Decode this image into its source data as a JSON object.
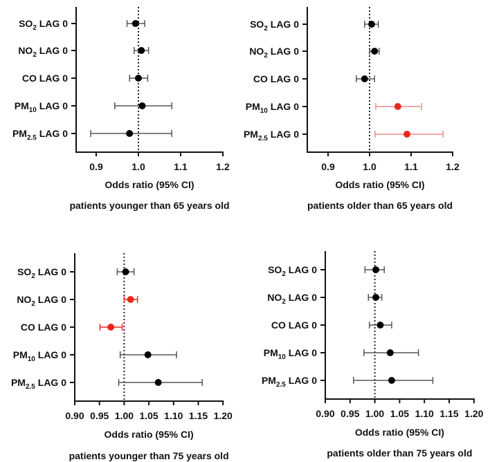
{
  "chart_data": [
    {
      "type": "forest",
      "subtitle": "patients younger than 65 years old",
      "xlabel": "Odds ratio (95% CI)",
      "xlim": [
        0.85,
        1.2
      ],
      "xticks": [
        "0.9",
        "1.0",
        "1.1",
        "1.2"
      ],
      "reference_line": 1.0,
      "rows": [
        {
          "pre": "SO",
          "sub": "2",
          "post": " LAG 0",
          "or": 0.993,
          "lo": 0.973,
          "hi": 1.015,
          "significant": false
        },
        {
          "pre": "NO",
          "sub": "2",
          "post": " LAG 0",
          "or": 1.007,
          "lo": 0.99,
          "hi": 1.024,
          "significant": false
        },
        {
          "pre": "CO LAG 0",
          "sub": "",
          "post": "",
          "or": 1.0,
          "lo": 0.979,
          "hi": 1.022,
          "significant": false
        },
        {
          "pre": "PM",
          "sub": "10",
          "post": " LAG 0",
          "or": 1.009,
          "lo": 0.944,
          "hi": 1.079,
          "significant": false
        },
        {
          "pre": "PM",
          "sub": "2.5",
          "post": " LAG 0",
          "or": 0.979,
          "lo": 0.887,
          "hi": 1.079,
          "significant": false
        }
      ]
    },
    {
      "type": "forest",
      "subtitle": "patients older than 65 years old",
      "xlabel": "Odds ratio (95% CI)",
      "xlim": [
        0.85,
        1.2
      ],
      "xticks": [
        "0.9",
        "1.0",
        "1.1",
        "1.2"
      ],
      "reference_line": 1.0,
      "rows": [
        {
          "pre": "SO",
          "sub": "2",
          "post": " LAG 0",
          "or": 1.005,
          "lo": 0.988,
          "hi": 1.021,
          "significant": false
        },
        {
          "pre": "NO",
          "sub": "2",
          "post": " LAG 0",
          "or": 1.012,
          "lo": 1.0,
          "hi": 1.023,
          "significant": false
        },
        {
          "pre": "CO LAG 0",
          "sub": "",
          "post": "",
          "or": 0.988,
          "lo": 0.968,
          "hi": 1.012,
          "significant": false
        },
        {
          "pre": "PM",
          "sub": "10",
          "post": " LAG 0",
          "or": 1.068,
          "lo": 1.015,
          "hi": 1.125,
          "significant": true
        },
        {
          "pre": "PM",
          "sub": "2.5",
          "post": " LAG 0",
          "or": 1.09,
          "lo": 1.013,
          "hi": 1.177,
          "significant": true
        }
      ]
    },
    {
      "type": "forest",
      "subtitle": "patients younger than 75 years old",
      "xlabel": "Odds ratio (95% CI)",
      "xlim": [
        0.9,
        1.2
      ],
      "xticks": [
        "0.90",
        "0.95",
        "1.00",
        "1.05",
        "1.10",
        "1.15",
        "1.20"
      ],
      "reference_line": 1.0,
      "rows": [
        {
          "pre": "SO",
          "sub": "2",
          "post": " LAG 0",
          "or": 1.003,
          "lo": 0.986,
          "hi": 1.02,
          "significant": false
        },
        {
          "pre": "NO",
          "sub": "2",
          "post": " LAG 0",
          "or": 1.013,
          "lo": 1.0,
          "hi": 1.027,
          "significant": true
        },
        {
          "pre": "CO LAG 0",
          "sub": "",
          "post": "",
          "or": 0.973,
          "lo": 0.951,
          "hi": 0.996,
          "significant": true
        },
        {
          "pre": "PM",
          "sub": "10",
          "post": " LAG 0",
          "or": 1.048,
          "lo": 0.992,
          "hi": 1.106,
          "significant": false
        },
        {
          "pre": "PM",
          "sub": "2.5",
          "post": " LAG 0",
          "or": 1.069,
          "lo": 0.989,
          "hi": 1.158,
          "significant": false
        }
      ]
    },
    {
      "type": "forest",
      "subtitle": "patients older than 75 years old",
      "xlabel": "Odds ratio (95% CI)",
      "xlim": [
        0.9,
        1.2
      ],
      "xticks": [
        "0.90",
        "0.95",
        "1.00",
        "1.05",
        "1.10",
        "1.15",
        "1.20"
      ],
      "reference_line": 1.0,
      "rows": [
        {
          "pre": "SO",
          "sub": "2",
          "post": " LAG 0",
          "or": 1.002,
          "lo": 0.98,
          "hi": 1.019,
          "significant": false
        },
        {
          "pre": "NO",
          "sub": "2",
          "post": " LAG 0",
          "or": 1.002,
          "lo": 0.987,
          "hi": 1.014,
          "significant": false
        },
        {
          "pre": "CO LAG 0",
          "sub": "",
          "post": "",
          "or": 1.011,
          "lo": 0.989,
          "hi": 1.034,
          "significant": false
        },
        {
          "pre": "PM",
          "sub": "10",
          "post": " LAG 0",
          "or": 1.031,
          "lo": 0.978,
          "hi": 1.088,
          "significant": false
        },
        {
          "pre": "PM",
          "sub": "2.5",
          "post": " LAG 0",
          "or": 1.034,
          "lo": 0.957,
          "hi": 1.117,
          "significant": false
        }
      ]
    }
  ],
  "colors": {
    "point": "#000000",
    "bar": "#555555",
    "sig_point": "#e8281c",
    "sig_bar_light": "#f08a8a",
    "sig_bar": "#e8281c"
  }
}
